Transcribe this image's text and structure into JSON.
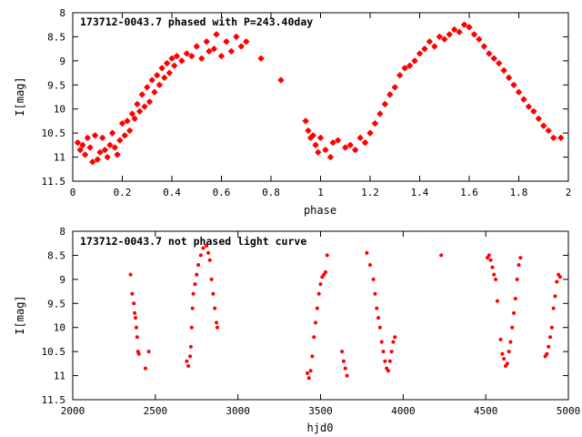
{
  "colors": {
    "points": "#ff0000",
    "frame": "#000000",
    "background": "#ffffff"
  },
  "chart_data": [
    {
      "type": "scatter",
      "title": "173712-0043.7 phased with P=243.40day",
      "xlabel": "phase",
      "ylabel": "I[mag]",
      "xlim": [
        0,
        2
      ],
      "ylim": [
        11.5,
        8
      ],
      "y_inverted": true,
      "grid": false,
      "x_ticks": [
        0,
        0.2,
        0.4,
        0.6,
        0.8,
        1,
        1.2,
        1.4,
        1.6,
        1.8,
        2
      ],
      "x_tick_labels": [
        "0",
        "0.2",
        "0.4",
        "0.6",
        "0.8",
        "1",
        "1.2",
        "1.4",
        "1.6",
        "1.8",
        "2"
      ],
      "y_ticks": [
        8,
        8.5,
        9,
        9.5,
        10,
        10.5,
        11,
        11.5
      ],
      "y_tick_labels": [
        "8",
        "8.5",
        "9",
        "9.5",
        "10",
        "10.5",
        "11",
        "11.5"
      ],
      "marker": "star",
      "points": [
        [
          0.02,
          10.7
        ],
        [
          0.03,
          10.85
        ],
        [
          0.04,
          10.75
        ],
        [
          0.05,
          10.95
        ],
        [
          0.06,
          10.6
        ],
        [
          0.07,
          10.8
        ],
        [
          0.08,
          11.1
        ],
        [
          0.09,
          10.55
        ],
        [
          0.1,
          11.05
        ],
        [
          0.11,
          10.9
        ],
        [
          0.12,
          10.6
        ],
        [
          0.13,
          10.85
        ],
        [
          0.14,
          11.0
        ],
        [
          0.15,
          10.75
        ],
        [
          0.16,
          10.5
        ],
        [
          0.17,
          10.8
        ],
        [
          0.18,
          10.95
        ],
        [
          0.19,
          10.65
        ],
        [
          0.2,
          10.3
        ],
        [
          0.21,
          10.55
        ],
        [
          0.22,
          10.25
        ],
        [
          0.23,
          10.45
        ],
        [
          0.24,
          10.1
        ],
        [
          0.25,
          10.2
        ],
        [
          0.26,
          9.9
        ],
        [
          0.27,
          10.05
        ],
        [
          0.28,
          9.7
        ],
        [
          0.29,
          9.95
        ],
        [
          0.3,
          9.55
        ],
        [
          0.31,
          9.85
        ],
        [
          0.32,
          9.4
        ],
        [
          0.33,
          9.65
        ],
        [
          0.34,
          9.3
        ],
        [
          0.35,
          9.5
        ],
        [
          0.36,
          9.15
        ],
        [
          0.37,
          9.35
        ],
        [
          0.38,
          9.05
        ],
        [
          0.39,
          9.25
        ],
        [
          0.4,
          8.95
        ],
        [
          0.41,
          9.1
        ],
        [
          0.42,
          8.9
        ],
        [
          0.44,
          9.0
        ],
        [
          0.46,
          8.85
        ],
        [
          0.48,
          8.9
        ],
        [
          0.5,
          8.7
        ],
        [
          0.52,
          8.95
        ],
        [
          0.54,
          8.6
        ],
        [
          0.55,
          8.8
        ],
        [
          0.57,
          8.75
        ],
        [
          0.58,
          8.45
        ],
        [
          0.6,
          8.9
        ],
        [
          0.62,
          8.6
        ],
        [
          0.64,
          8.8
        ],
        [
          0.66,
          8.5
        ],
        [
          0.68,
          8.7
        ],
        [
          0.7,
          8.6
        ],
        [
          0.76,
          8.95
        ],
        [
          0.84,
          9.4
        ],
        [
          0.94,
          10.25
        ],
        [
          0.95,
          10.45
        ],
        [
          0.96,
          10.6
        ],
        [
          0.97,
          10.55
        ],
        [
          0.98,
          10.75
        ],
        [
          0.99,
          10.9
        ],
        [
          1.0,
          10.6
        ],
        [
          1.02,
          10.85
        ],
        [
          1.04,
          11.0
        ],
        [
          1.05,
          10.7
        ],
        [
          1.07,
          10.65
        ],
        [
          1.1,
          10.8
        ],
        [
          1.12,
          10.75
        ],
        [
          1.14,
          10.85
        ],
        [
          1.16,
          10.6
        ],
        [
          1.18,
          10.7
        ],
        [
          1.2,
          10.5
        ],
        [
          1.22,
          10.3
        ],
        [
          1.24,
          10.1
        ],
        [
          1.26,
          9.9
        ],
        [
          1.28,
          9.7
        ],
        [
          1.3,
          9.55
        ],
        [
          1.32,
          9.3
        ],
        [
          1.34,
          9.15
        ],
        [
          1.36,
          9.1
        ],
        [
          1.38,
          9.0
        ],
        [
          1.4,
          8.85
        ],
        [
          1.42,
          8.75
        ],
        [
          1.44,
          8.6
        ],
        [
          1.46,
          8.7
        ],
        [
          1.48,
          8.5
        ],
        [
          1.5,
          8.55
        ],
        [
          1.52,
          8.45
        ],
        [
          1.54,
          8.35
        ],
        [
          1.56,
          8.4
        ],
        [
          1.58,
          8.25
        ],
        [
          1.6,
          8.3
        ],
        [
          1.62,
          8.45
        ],
        [
          1.64,
          8.55
        ],
        [
          1.66,
          8.7
        ],
        [
          1.68,
          8.85
        ],
        [
          1.7,
          8.95
        ],
        [
          1.72,
          9.05
        ],
        [
          1.74,
          9.2
        ],
        [
          1.76,
          9.35
        ],
        [
          1.78,
          9.5
        ],
        [
          1.8,
          9.65
        ],
        [
          1.82,
          9.8
        ],
        [
          1.84,
          9.95
        ],
        [
          1.86,
          10.05
        ],
        [
          1.88,
          10.2
        ],
        [
          1.9,
          10.35
        ],
        [
          1.92,
          10.45
        ],
        [
          1.94,
          10.6
        ],
        [
          1.97,
          10.6
        ]
      ]
    },
    {
      "type": "scatter",
      "title": "173712-0043.7 not phased light curve",
      "xlabel": "hjd0",
      "ylabel": "I[mag]",
      "xlim": [
        2000,
        5000
      ],
      "ylim": [
        11.5,
        8
      ],
      "y_inverted": true,
      "grid": false,
      "x_ticks": [
        2000,
        2500,
        3000,
        3500,
        4000,
        4500,
        5000
      ],
      "x_tick_labels": [
        "2000",
        "2500",
        "3000",
        "3500",
        "4000",
        "4500",
        "5000"
      ],
      "y_ticks": [
        8,
        8.5,
        9,
        9.5,
        10,
        10.5,
        11,
        11.5
      ],
      "y_tick_labels": [
        "8",
        "8.5",
        "9",
        "9.5",
        "10",
        "10.5",
        "11",
        "11.5"
      ],
      "marker": "dot",
      "points": [
        [
          2350,
          8.9
        ],
        [
          2360,
          9.3
        ],
        [
          2370,
          9.5
        ],
        [
          2375,
          9.7
        ],
        [
          2380,
          9.8
        ],
        [
          2385,
          10.0
        ],
        [
          2390,
          10.2
        ],
        [
          2395,
          10.5
        ],
        [
          2400,
          10.55
        ],
        [
          2440,
          10.85
        ],
        [
          2460,
          10.5
        ],
        [
          2690,
          10.7
        ],
        [
          2700,
          10.8
        ],
        [
          2710,
          10.6
        ],
        [
          2715,
          10.4
        ],
        [
          2720,
          10.0
        ],
        [
          2725,
          9.6
        ],
        [
          2730,
          9.3
        ],
        [
          2740,
          9.1
        ],
        [
          2750,
          8.9
        ],
        [
          2760,
          8.7
        ],
        [
          2775,
          8.5
        ],
        [
          2790,
          8.35
        ],
        [
          2810,
          8.3
        ],
        [
          2820,
          8.45
        ],
        [
          2830,
          8.6
        ],
        [
          2840,
          9.0
        ],
        [
          2850,
          9.3
        ],
        [
          2860,
          9.6
        ],
        [
          2870,
          9.9
        ],
        [
          2875,
          10.0
        ],
        [
          3420,
          10.95
        ],
        [
          3430,
          11.05
        ],
        [
          3440,
          10.9
        ],
        [
          3450,
          10.6
        ],
        [
          3460,
          10.2
        ],
        [
          3470,
          9.9
        ],
        [
          3480,
          9.6
        ],
        [
          3490,
          9.3
        ],
        [
          3500,
          9.1
        ],
        [
          3510,
          8.95
        ],
        [
          3520,
          8.9
        ],
        [
          3530,
          8.85
        ],
        [
          3540,
          8.5
        ],
        [
          3630,
          10.5
        ],
        [
          3640,
          10.7
        ],
        [
          3650,
          10.85
        ],
        [
          3660,
          11.0
        ],
        [
          3780,
          8.45
        ],
        [
          3800,
          8.7
        ],
        [
          3820,
          9.0
        ],
        [
          3830,
          9.3
        ],
        [
          3840,
          9.6
        ],
        [
          3850,
          9.8
        ],
        [
          3860,
          10.0
        ],
        [
          3870,
          10.3
        ],
        [
          3880,
          10.5
        ],
        [
          3890,
          10.7
        ],
        [
          3900,
          10.85
        ],
        [
          3910,
          10.9
        ],
        [
          3920,
          10.7
        ],
        [
          3930,
          10.5
        ],
        [
          3940,
          10.3
        ],
        [
          3950,
          10.2
        ],
        [
          4230,
          8.5
        ],
        [
          4510,
          8.55
        ],
        [
          4520,
          8.5
        ],
        [
          4530,
          8.6
        ],
        [
          4540,
          8.75
        ],
        [
          4550,
          8.9
        ],
        [
          4560,
          9.0
        ],
        [
          4570,
          9.45
        ],
        [
          4590,
          10.25
        ],
        [
          4600,
          10.55
        ],
        [
          4610,
          10.65
        ],
        [
          4620,
          10.8
        ],
        [
          4630,
          10.75
        ],
        [
          4640,
          10.5
        ],
        [
          4650,
          10.3
        ],
        [
          4660,
          10.0
        ],
        [
          4670,
          9.7
        ],
        [
          4680,
          9.4
        ],
        [
          4690,
          9.0
        ],
        [
          4700,
          8.7
        ],
        [
          4710,
          8.55
        ],
        [
          4860,
          10.6
        ],
        [
          4870,
          10.55
        ],
        [
          4880,
          10.4
        ],
        [
          4890,
          10.2
        ],
        [
          4900,
          10.0
        ],
        [
          4910,
          9.6
        ],
        [
          4920,
          9.35
        ],
        [
          4930,
          9.05
        ],
        [
          4940,
          8.9
        ],
        [
          4950,
          8.95
        ]
      ]
    }
  ]
}
